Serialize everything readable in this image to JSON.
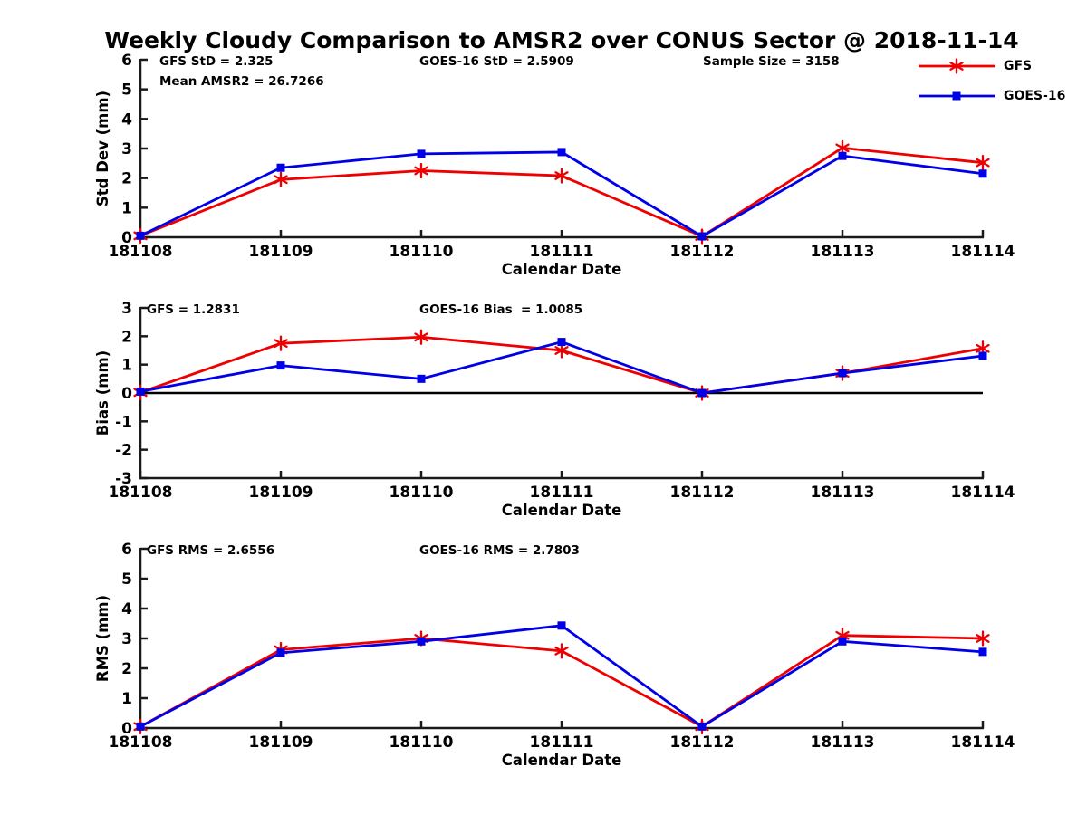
{
  "title": "Weekly Cloudy Comparison to AMSR2 over CONUS Sector @ 2018-11-14",
  "colors": {
    "gfs": "#ee0000",
    "goes16": "#0000e8",
    "axis": "#1a1a1a",
    "zero_line": "#000000"
  },
  "legend": {
    "items": [
      {
        "label": "GFS",
        "color": "#ee0000",
        "marker": "asterisk"
      },
      {
        "label": "GOES-16",
        "color": "#0000e8",
        "marker": "square"
      }
    ]
  },
  "xlabel": "Calendar Date",
  "categories": [
    "181108",
    "181109",
    "181110",
    "181111",
    "181112",
    "181113",
    "181114"
  ],
  "chart_data": [
    {
      "type": "line",
      "name": "std-dev",
      "ylabel": "Std Dev (mm)",
      "xlabel": "Calendar Date",
      "ylim": [
        0,
        6
      ],
      "yticks": [
        0,
        1,
        2,
        3,
        4,
        5,
        6
      ],
      "zero_line": false,
      "annotations": [
        "GFS StD = 2.325",
        "Mean AMSR2 = 26.7266",
        "GOES-16 StD = 2.5909",
        "Sample Size = 3158"
      ],
      "series": [
        {
          "name": "GFS",
          "color": "#ee0000",
          "marker": "asterisk",
          "values": [
            0.05,
            1.95,
            2.25,
            2.08,
            0.03,
            3.02,
            2.52
          ]
        },
        {
          "name": "GOES-16",
          "color": "#0000e8",
          "marker": "square",
          "values": [
            0.05,
            2.35,
            2.82,
            2.88,
            0.03,
            2.75,
            2.15
          ]
        }
      ]
    },
    {
      "type": "line",
      "name": "bias",
      "ylabel": "Bias (mm)",
      "xlabel": "Calendar Date",
      "ylim": [
        -3,
        3
      ],
      "yticks": [
        -3,
        -2,
        -1,
        0,
        1,
        2,
        3
      ],
      "zero_line": true,
      "annotations": [
        "GFS = 1.2831",
        "GOES-16 Bias  = 1.0085"
      ],
      "series": [
        {
          "name": "GFS",
          "color": "#ee0000",
          "marker": "asterisk",
          "values": [
            0.02,
            1.75,
            1.97,
            1.5,
            0.0,
            0.7,
            1.57
          ]
        },
        {
          "name": "GOES-16",
          "color": "#0000e8",
          "marker": "square",
          "values": [
            0.05,
            0.97,
            0.5,
            1.8,
            0.0,
            0.7,
            1.31
          ]
        }
      ]
    },
    {
      "type": "line",
      "name": "rms",
      "ylabel": "RMS (mm)",
      "xlabel": "Calendar Date",
      "ylim": [
        0,
        6
      ],
      "yticks": [
        0,
        1,
        2,
        3,
        4,
        5,
        6
      ],
      "zero_line": false,
      "annotations": [
        "GFS RMS = 2.6556",
        "GOES-16 RMS = 2.7803"
      ],
      "series": [
        {
          "name": "GFS",
          "color": "#ee0000",
          "marker": "asterisk",
          "values": [
            0.05,
            2.62,
            3.0,
            2.58,
            0.05,
            3.1,
            3.0
          ]
        },
        {
          "name": "GOES-16",
          "color": "#0000e8",
          "marker": "square",
          "values": [
            0.05,
            2.52,
            2.9,
            3.43,
            0.05,
            2.9,
            2.55
          ]
        }
      ]
    }
  ]
}
